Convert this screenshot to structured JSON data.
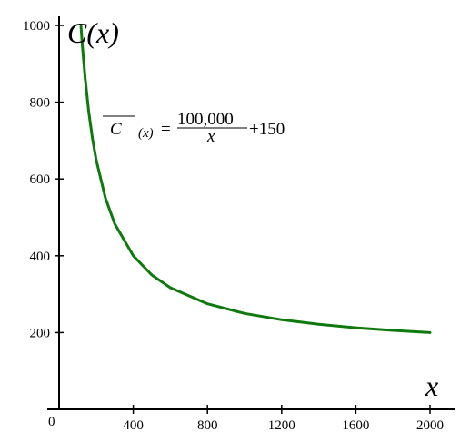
{
  "chart_data": {
    "type": "line",
    "xlabel": "x",
    "ylabel": "C(x)",
    "origin_label": "0",
    "xlim": [
      0,
      2000
    ],
    "ylim": [
      0,
      1000
    ],
    "x_ticks": [
      400,
      800,
      1200,
      1600,
      2000
    ],
    "x_tick_labels": [
      "400",
      "800",
      "1200",
      "1600",
      "2000"
    ],
    "y_ticks": [
      200,
      400,
      600,
      800,
      1000
    ],
    "y_tick_labels": [
      "200",
      "400",
      "600",
      "800",
      "1000"
    ],
    "grid": false,
    "annotation": {
      "lhs": "C",
      "arg": "(x)",
      "equals": "=",
      "numerator": "100,000",
      "denominator": "x",
      "tail": "+150"
    },
    "series": [
      {
        "color": "#0e7a0e",
        "function": "100000/x + 150",
        "x": [
          118,
          125,
          140,
          160,
          180,
          200,
          250,
          300,
          400,
          500,
          600,
          800,
          1000,
          1200,
          1400,
          1600,
          1800,
          2000
        ],
        "values": [
          997.5,
          950,
          864.3,
          775,
          705.6,
          650,
          550,
          483.3,
          400,
          350,
          316.7,
          275,
          250,
          233.3,
          221.4,
          212.5,
          205.6,
          200
        ]
      }
    ]
  }
}
